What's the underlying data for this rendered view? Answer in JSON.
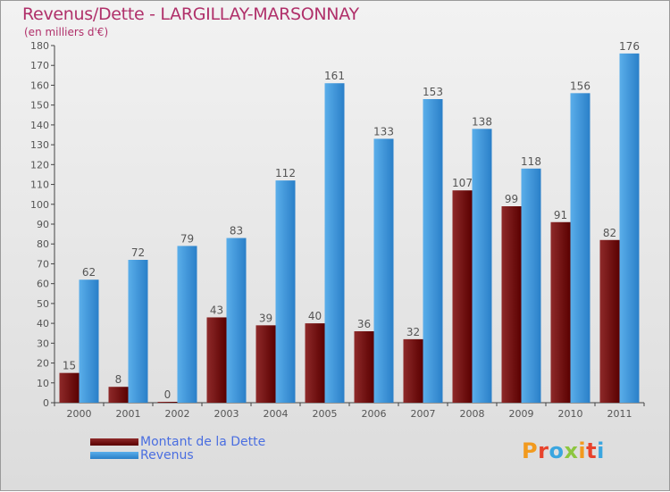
{
  "title": "Revenus/Dette - LARGILLAY-MARSONNAY",
  "subtitle": "(en milliers d'€)",
  "logo": {
    "text": "Proxiti",
    "colors": [
      "#f29a1e",
      "#e8432c",
      "#3aa6e0",
      "#8dc63f",
      "#f29a1e",
      "#e8432c",
      "#3aa6e0"
    ]
  },
  "colors": {
    "dette_dark": "#5a0000",
    "dette_light": "#8e2a2a",
    "revenus_dark": "#2a7fc8",
    "revenus_light": "#5aaeea",
    "label": "#555555",
    "axis": "#444444"
  },
  "chart_data": {
    "type": "bar",
    "categories": [
      "2000",
      "2001",
      "2002",
      "2003",
      "2004",
      "2005",
      "2006",
      "2007",
      "2008",
      "2009",
      "2010",
      "2011"
    ],
    "series": [
      {
        "name": "Montant de la Dette",
        "values": [
          15,
          8,
          0,
          43,
          39,
          40,
          36,
          32,
          107,
          99,
          91,
          82
        ]
      },
      {
        "name": "Revenus",
        "values": [
          62,
          72,
          79,
          83,
          112,
          161,
          133,
          153,
          138,
          118,
          156,
          176
        ]
      }
    ],
    "ylim": [
      0,
      180
    ],
    "yticks": [
      0,
      10,
      20,
      30,
      40,
      50,
      60,
      70,
      80,
      90,
      100,
      110,
      120,
      130,
      140,
      150,
      160,
      170,
      180
    ],
    "grid": false,
    "legend": "bottom-left"
  }
}
